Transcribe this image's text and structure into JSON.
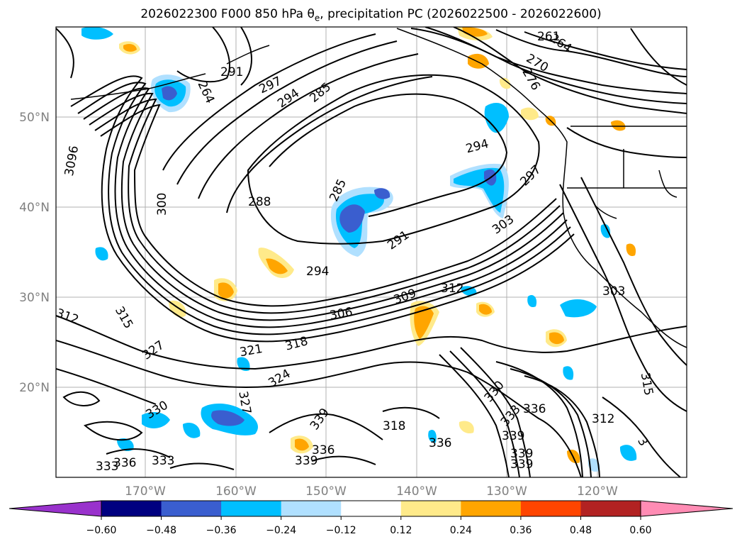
{
  "title": {
    "prefix": "2026022300 F000 850 hPa θ",
    "subscript": "e",
    "suffix": ", precipitation PC (2026022500 - 2026022600)"
  },
  "map": {
    "lat_labels": [
      "50°N",
      "40°N",
      "30°N",
      "20°N"
    ],
    "lon_labels": [
      "170°W",
      "160°W",
      "150°W",
      "140°W",
      "130°W",
      "120°W"
    ],
    "contour_labels": [
      "291",
      "297",
      "294",
      "285",
      "264",
      "261",
      "264",
      "270",
      "276",
      "294",
      "297",
      "303",
      "288",
      "285",
      "291",
      "294",
      "300",
      "3096",
      "309",
      "312",
      "306",
      "318",
      "321",
      "315",
      "312",
      "303",
      "327",
      "324",
      "327",
      "330",
      "339",
      "318",
      "330",
      "333",
      "336",
      "339",
      "336",
      "339",
      "336",
      "333",
      "339",
      "339",
      "312",
      "315",
      "333",
      "336",
      "3"
    ]
  },
  "colorbar": {
    "ticks": [
      "−0.60",
      "−0.48",
      "−0.36",
      "−0.24",
      "−0.12",
      "0.12",
      "0.24",
      "0.36",
      "0.48",
      "0.60"
    ],
    "colors": [
      "#9932cc",
      "#000080",
      "#3a5ecf",
      "#00bfff",
      "#b0e0ff",
      "#ffffff",
      "#ffea8a",
      "#ffa500",
      "#ff4500",
      "#b22222",
      "#ff8cb4"
    ]
  }
}
